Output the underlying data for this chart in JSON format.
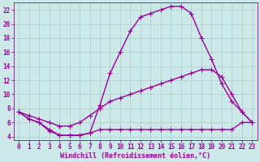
{
  "background_color": "#cce8e8",
  "grid_color": "#aacccc",
  "line_color": "#990099",
  "marker": "+",
  "markersize": 4,
  "linewidth": 1.0,
  "xlabel": "Windchill (Refroidissement éolien,°C)",
  "xlabel_fontsize": 6.0,
  "tick_fontsize": 5.5,
  "ylim": [
    3.5,
    23.0
  ],
  "xlim": [
    -0.5,
    23.5
  ],
  "yticks": [
    4,
    6,
    8,
    10,
    12,
    14,
    16,
    18,
    20,
    22
  ],
  "xticks": [
    0,
    1,
    2,
    3,
    4,
    5,
    6,
    7,
    8,
    9,
    10,
    11,
    12,
    13,
    14,
    15,
    16,
    17,
    18,
    19,
    20,
    21,
    22,
    23
  ],
  "line1_x": [
    0,
    1,
    2,
    3,
    4,
    5,
    6,
    7,
    8,
    9,
    10,
    11,
    12,
    13,
    14,
    15,
    16,
    17,
    18,
    19,
    20,
    21,
    22,
    23
  ],
  "line1_y": [
    7.5,
    6.5,
    6.0,
    4.8,
    4.2,
    4.2,
    4.2,
    4.5,
    5.0,
    5.0,
    5.0,
    5.0,
    5.0,
    5.0,
    5.0,
    5.0,
    5.0,
    5.0,
    5.0,
    5.0,
    5.0,
    5.0,
    6.0,
    6.0
  ],
  "line2_x": [
    0,
    1,
    2,
    3,
    4,
    5,
    6,
    7,
    8,
    9,
    10,
    11,
    12,
    13,
    14,
    15,
    16,
    17,
    18,
    19,
    20,
    21,
    22,
    23
  ],
  "line2_y": [
    7.5,
    7.0,
    6.5,
    6.0,
    5.5,
    5.5,
    6.0,
    7.0,
    8.0,
    9.0,
    9.5,
    10.0,
    10.5,
    11.0,
    11.5,
    12.0,
    12.5,
    13.0,
    13.5,
    13.5,
    12.5,
    10.0,
    7.5,
    6.0
  ],
  "line3_x": [
    0,
    1,
    2,
    3,
    4,
    5,
    6,
    7,
    8,
    9,
    10,
    11,
    12,
    13,
    14,
    15,
    16,
    17,
    18,
    19,
    20,
    21,
    22,
    23
  ],
  "line3_y": [
    7.5,
    6.5,
    6.0,
    5.0,
    4.2,
    4.2,
    4.2,
    4.5,
    8.5,
    13.0,
    16.0,
    19.0,
    21.0,
    21.5,
    22.0,
    22.5,
    22.5,
    21.5,
    18.0,
    15.0,
    11.5,
    9.0,
    7.5,
    6.0
  ]
}
